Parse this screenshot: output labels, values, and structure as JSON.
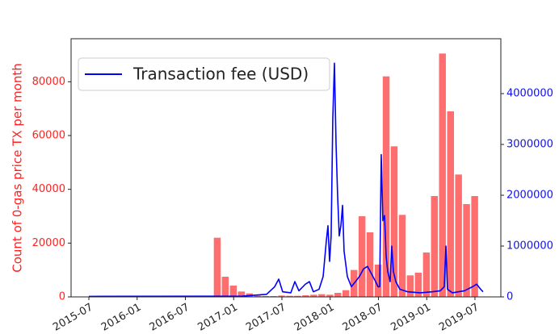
{
  "chart_data": {
    "type": "combo",
    "ylabel": "Count of 0-gas price TX per month",
    "xlim": [
      2015.316,
      2019.768
    ],
    "xticks": [
      {
        "value": 2015.5,
        "label": "2015-07"
      },
      {
        "value": 2016.0,
        "label": "2016-01"
      },
      {
        "value": 2016.5,
        "label": "2016-07"
      },
      {
        "value": 2017.0,
        "label": "2017-01"
      },
      {
        "value": 2017.5,
        "label": "2017-07"
      },
      {
        "value": 2018.0,
        "label": "2018-01"
      },
      {
        "value": 2018.5,
        "label": "2018-07"
      },
      {
        "value": 2019.0,
        "label": "2019-01"
      },
      {
        "value": 2019.5,
        "label": "2019-07"
      }
    ],
    "ylim": [
      0,
      96000
    ],
    "yticks": [
      0,
      20000,
      40000,
      60000,
      80000
    ],
    "y2lim": [
      0,
      5080000
    ],
    "y2ticks": [
      0,
      1000000,
      2000000,
      3000000,
      4000000
    ],
    "ycolor": "#ff2222",
    "y2color": "#1111ee",
    "legend": "upper left",
    "series": [
      {
        "type": "bar",
        "color": "#ff6666",
        "x": [
          2016.83,
          2016.913,
          2016.997,
          2017.08,
          2017.163,
          2017.247,
          2017.33,
          2017.413,
          2017.497,
          2017.58,
          2017.663,
          2017.747,
          2017.83,
          2017.913,
          2017.997,
          2018.08,
          2018.163,
          2018.247,
          2018.33,
          2018.413,
          2018.497,
          2018.58,
          2018.663,
          2018.747,
          2018.83,
          2018.913,
          2018.997,
          2019.08,
          2019.163,
          2019.247,
          2019.33,
          2019.413,
          2019.497
        ],
        "values": [
          22000,
          7500,
          4200,
          2000,
          1300,
          400,
          300,
          300,
          500,
          400,
          400,
          600,
          800,
          1000,
          800,
          1500,
          2500,
          10000,
          30000,
          24000,
          12000,
          82000,
          56000,
          30500,
          8000,
          9000,
          16500,
          37500,
          90500,
          69000,
          45500,
          34500,
          37500
        ]
      },
      {
        "type": "line",
        "name": "Transaction fee (USD)",
        "color": "#0000ff",
        "axis": "y2",
        "x": [
          2015.5,
          2017.09,
          2017.341,
          2017.425,
          2017.467,
          2017.508,
          2017.592,
          2017.634,
          2017.676,
          2017.743,
          2017.785,
          2017.826,
          2017.885,
          2017.927,
          2017.96,
          2017.977,
          2017.994,
          2018.01,
          2018.027,
          2018.044,
          2018.061,
          2018.077,
          2018.094,
          2018.111,
          2018.128,
          2018.144,
          2018.178,
          2018.22,
          2018.262,
          2018.303,
          2018.345,
          2018.387,
          2018.429,
          2018.471,
          2018.496,
          2018.513,
          2018.529,
          2018.546,
          2018.563,
          2018.58,
          2018.596,
          2018.621,
          2018.638,
          2018.655,
          2018.68,
          2018.722,
          2018.805,
          2018.931,
          2019.056,
          2019.14,
          2019.182,
          2019.199,
          2019.215,
          2019.266,
          2019.391,
          2019.475,
          2019.517,
          2019.559,
          2019.584
        ],
        "values": [
          10000,
          15000,
          50000,
          200000,
          350000,
          100000,
          80000,
          300000,
          120000,
          250000,
          300000,
          100000,
          150000,
          400000,
          1100000,
          1400000,
          700000,
          1200000,
          3500000,
          4600000,
          3000000,
          2000000,
          1200000,
          1400000,
          1800000,
          900000,
          400000,
          200000,
          300000,
          400000,
          550000,
          600000,
          450000,
          300000,
          200000,
          200000,
          2800000,
          1500000,
          1600000,
          800000,
          500000,
          300000,
          1000000,
          500000,
          300000,
          150000,
          100000,
          80000,
          100000,
          120000,
          200000,
          1000000,
          150000,
          80000,
          120000,
          200000,
          250000,
          150000,
          100000
        ]
      }
    ]
  }
}
